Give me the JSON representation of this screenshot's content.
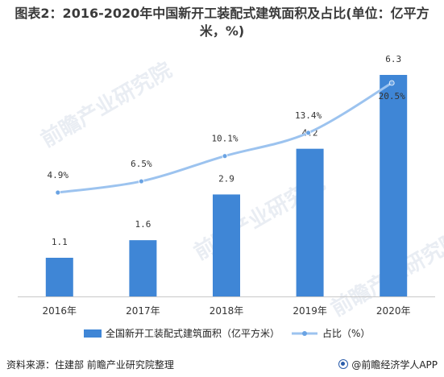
{
  "title": "图表2：2016-2020年中国新开工装配式建筑面积及占比(单位：亿平方米，%)",
  "title_line1": "图表2：2016-2020年中国新开工装配式建筑面积及占比(单位：亿平方",
  "title_line2": "米，%)",
  "watermark": "前瞻产业研究院",
  "footer": {
    "source": "资料来源：住建部 前瞻产业研究院整理",
    "brand": "@前瞻经济学人APP"
  },
  "colors": {
    "bar": "#3f86d6",
    "line": "#9cc3ef",
    "marker": "#6aa3e3"
  },
  "chart_data": {
    "type": "bar",
    "categories": [
      "2016年",
      "2017年",
      "2018年",
      "2019年",
      "2020年"
    ],
    "series": [
      {
        "name": "全国新开工装配式建筑面积（亿平方米）",
        "type": "bar",
        "values": [
          1.1,
          1.6,
          2.9,
          4.2,
          6.3
        ],
        "labels": [
          "1.1",
          "1.6",
          "2.9",
          "4.2",
          "6.3"
        ]
      },
      {
        "name": "占比（%）",
        "type": "line",
        "values": [
          4.9,
          6.5,
          10.1,
          13.4,
          20.5
        ],
        "labels": [
          "4.9%",
          "6.5%",
          "10.1%",
          "13.4%",
          "20.5%"
        ]
      }
    ],
    "legend": "bottom-center",
    "grid": false
  }
}
